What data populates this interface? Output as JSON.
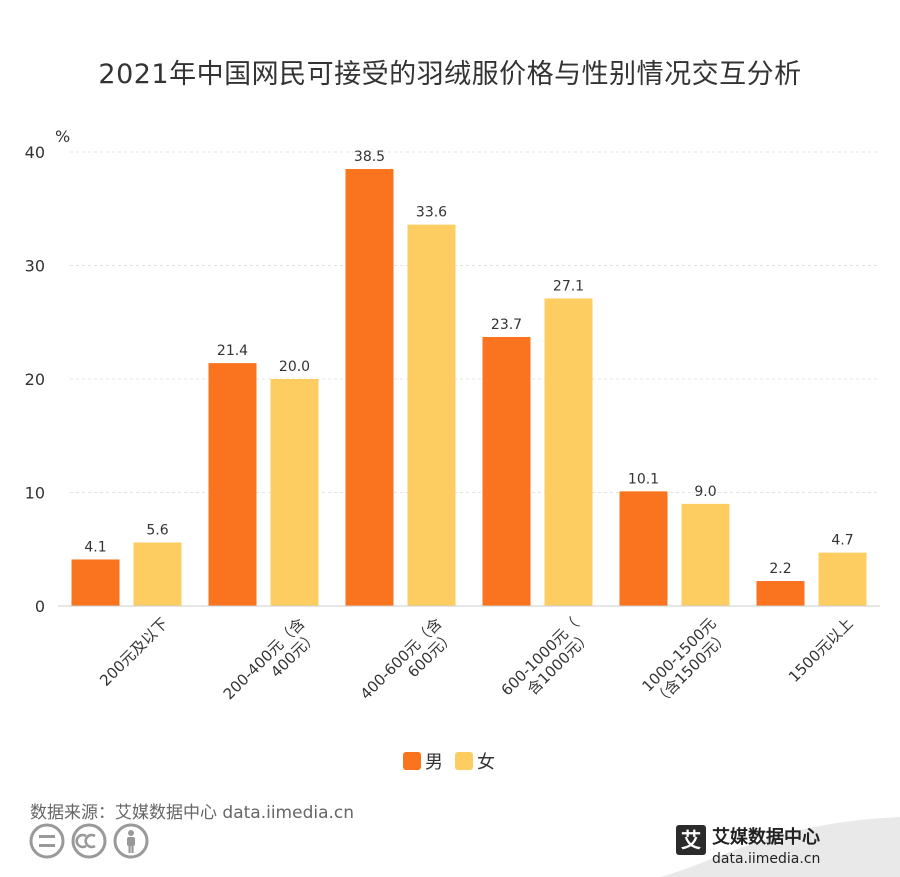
{
  "chart_data": {
    "type": "bar",
    "title": "2021年中国网民可接受的羽绒服价格与性别情况交互分析",
    "ylabel": "%",
    "ylim": [
      0,
      40
    ],
    "yticks": [
      0,
      10,
      20,
      30,
      40
    ],
    "grid": true,
    "legend_position": "bottom-center",
    "categories": [
      "200元及以下",
      "200-400元（含400元）",
      "400-600元（含600元）",
      "600-1000元（含1000元）",
      "1000-1500元（含1500元）",
      "1500元以上"
    ],
    "category_lines": [
      [
        "200元及以下"
      ],
      [
        "200-400元（含",
        "400元）"
      ],
      [
        "400-600元（含",
        "600元）"
      ],
      [
        "600-1000元（",
        "含1000元）"
      ],
      [
        "1000-1500元",
        "（含1500元）"
      ],
      [
        "1500元以上"
      ]
    ],
    "series": [
      {
        "name": "男",
        "color": "#FA731E",
        "values": [
          4.1,
          21.4,
          38.5,
          23.7,
          10.1,
          2.2
        ]
      },
      {
        "name": "女",
        "color": "#FDCD62",
        "values": [
          5.6,
          20.0,
          33.6,
          27.1,
          9.0,
          4.7
        ]
      }
    ]
  },
  "source": "数据来源：艾媒数据中心 data.iimedia.cn",
  "brand": {
    "name": "艾媒数据中心",
    "url": "data.iimedia.cn",
    "logo_char": "艾"
  },
  "icons": [
    "equals-icon",
    "cc-icon",
    "person-icon"
  ]
}
